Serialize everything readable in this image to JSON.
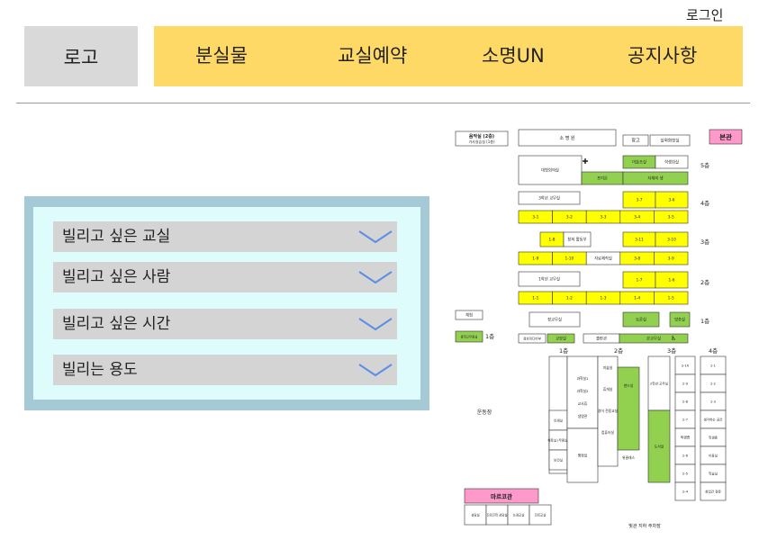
{
  "header": {
    "login": "로그인",
    "logo": "로고",
    "nav": [
      "분실물",
      "교실예약",
      "소명UN",
      "공지사항"
    ]
  },
  "form": {
    "dropdowns": [
      "빌리고 싶은 교실",
      "빌리고 싶은 사람",
      "빌리고 싶은 시간",
      "빌리는 용도"
    ]
  },
  "map": {
    "labels": {
      "music_room": "음악실 (2층)",
      "music_sub": "가사실습실 (1층)",
      "auditorium": "소 명 원",
      "storage": "창고",
      "outdoor_lab": "실외화장실",
      "main_building": "본관",
      "marco_building": "마르코관",
      "playground": "운동장",
      "parking": "빛관 지하 주차장",
      "rest_1f": "체험",
      "girls_counsel": "중학교무용실"
    },
    "floors_right": [
      "5층",
      "4층",
      "3층",
      "2층",
      "1층"
    ],
    "floors_bottom": [
      "1층",
      "2층",
      "3층",
      "4층"
    ],
    "row5": [
      "대형회의실",
      "미술조실",
      "학생회실",
      "포미온",
      "자체의 생"
    ],
    "row4_top": [
      "3학년 교무실",
      "3-7",
      "3-6"
    ],
    "row4_bottom": [
      "3-1",
      "3-2",
      "3-3",
      "3-4",
      "3-5"
    ],
    "row3_top": [
      "1-8",
      "창의 활동부",
      "3-11",
      "3-10"
    ],
    "row3_bottom": [
      "1-9",
      "1-10",
      "자료제작실",
      "3-8",
      "3-9"
    ],
    "row2_top": [
      "1학년 교무실",
      "1-7",
      "1-6"
    ],
    "row2_bottom": [
      "1-1",
      "1-2",
      "1-3",
      "1-4",
      "1-5"
    ],
    "row1_top": [
      "정교무실",
      "토론실",
      "방송실"
    ],
    "row1_bottom": [
      "정보미디어부",
      "교장실",
      "출판관",
      "본교무실"
    ],
    "colA": [
      "과학실1",
      "과학실2",
      "교사휴",
      "생명관",
      "인쇄실",
      "체육실 (무용실)",
      "보건실",
      "상담 (Wee)",
      "행정실"
    ],
    "colB": [
      "미술실",
      "휴게실",
      "영어 전용교실",
      "컴퓨터실",
      "밴드실",
      "위클래스"
    ],
    "colC": [
      "2학년 교무실",
      "아람실",
      "도서실"
    ],
    "colD": [
      "2-10",
      "2-9",
      "2-8",
      "2-7",
      "학생증",
      "2-6",
      "2-5",
      "2-4"
    ],
    "colE": [
      "2-1",
      "2-2",
      "2-3",
      "생각하는 공간",
      "학생증",
      "이동실",
      "학습실",
      "창업관 정문"
    ],
    "marco": [
      "상담실",
      "진로진학 상담실",
      "논경교실",
      "진로교실"
    ]
  }
}
